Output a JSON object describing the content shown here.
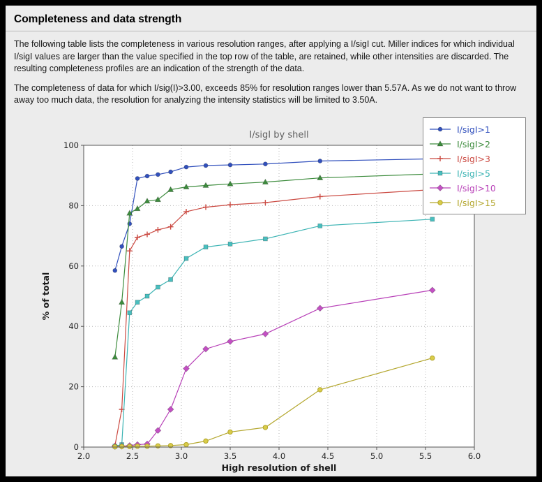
{
  "page": {
    "title": "Completeness and data strength",
    "paragraph1": "The following table lists the completeness in various resolution ranges, after applying a I/sigI cut. Miller indices for which individual I/sigI values are larger than the value specified in the top row of the table, are retained, while other intensities are discarded. The resulting completeness profiles are an indication of the strength of the data.",
    "paragraph2": "The completeness of data for which I/sig(I)>3.00, exceeds  85% for resolution ranges lower than 5.57A. As we do not want to throw away too much data, the resolution for analyzing the intensity statistics will be limited to 3.50A."
  },
  "chart_data": {
    "type": "line",
    "title": "I/sigI by shell",
    "xlabel": "High resolution of shell",
    "ylabel": "% of total",
    "xlim": [
      2.0,
      6.0
    ],
    "ylim": [
      0,
      100
    ],
    "xticks": [
      2.0,
      2.5,
      3.0,
      3.5,
      4.0,
      4.5,
      5.0,
      5.5,
      6.0
    ],
    "yticks": [
      0,
      20,
      40,
      60,
      80,
      100
    ],
    "grid": true,
    "legend_position": "top-right",
    "x": [
      2.32,
      2.39,
      2.47,
      2.55,
      2.65,
      2.76,
      2.89,
      3.05,
      3.25,
      3.5,
      3.86,
      4.42,
      5.57
    ],
    "series": [
      {
        "name": "I/sigI>1",
        "color": "#3150bd",
        "marker": "circle",
        "values": [
          58.5,
          66.5,
          74.0,
          89.0,
          89.8,
          90.3,
          91.2,
          92.8,
          93.3,
          93.5,
          93.8,
          94.8,
          95.5
        ]
      },
      {
        "name": "I/sigI>2",
        "color": "#3d8c3d",
        "marker": "triangle",
        "values": [
          29.8,
          48.0,
          77.5,
          79.0,
          81.5,
          82.0,
          85.3,
          86.2,
          86.7,
          87.2,
          87.8,
          89.2,
          90.5
        ]
      },
      {
        "name": "I/sigI>3",
        "color": "#cb4a42",
        "marker": "plus",
        "values": [
          0.5,
          12.5,
          65.0,
          69.5,
          70.5,
          72.0,
          73.0,
          78.0,
          79.5,
          80.3,
          81.0,
          83.0,
          85.3
        ]
      },
      {
        "name": "I/sigI>5",
        "color": "#3cb4b4",
        "fill": "#49bfbf",
        "marker": "square",
        "values": [
          0.3,
          0.8,
          44.5,
          48.0,
          50.0,
          53.0,
          55.5,
          62.5,
          66.3,
          67.3,
          69.0,
          73.3,
          75.5
        ]
      },
      {
        "name": "I/sigI>10",
        "color": "#b840b8",
        "fill": "#c44fc4",
        "marker": "diamond",
        "values": [
          0.2,
          0.3,
          0.5,
          0.8,
          1.0,
          5.5,
          12.5,
          26.0,
          32.5,
          35.0,
          37.5,
          46.0,
          52.0
        ]
      },
      {
        "name": "I/sigI>15",
        "color": "#b3a62c",
        "fill": "#d9cc49",
        "marker": "circle-open",
        "values": [
          0.1,
          0.2,
          0.2,
          0.3,
          0.3,
          0.4,
          0.5,
          0.8,
          2.0,
          5.0,
          6.5,
          19.0,
          29.5
        ]
      }
    ]
  }
}
